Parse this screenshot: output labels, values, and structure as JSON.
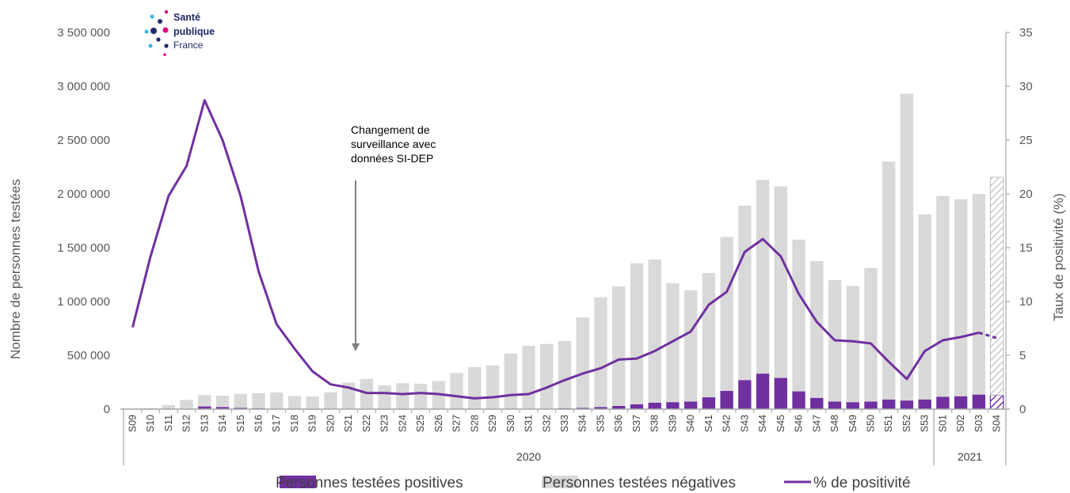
{
  "logo": {
    "line1": "Santé",
    "line2": "publique",
    "line3": "France"
  },
  "annotation": {
    "lines": [
      "Changement de",
      "surveillance avec",
      "données SI-DEP"
    ],
    "at_week": "S21"
  },
  "chart_data": {
    "type": "bar",
    "stacked": true,
    "categories": [
      "S09",
      "S10",
      "S11",
      "S12",
      "S13",
      "S14",
      "S15",
      "S16",
      "S17",
      "S18",
      "S19",
      "S20",
      "S21",
      "S22",
      "S23",
      "S24",
      "S25",
      "S26",
      "S27",
      "S28",
      "S29",
      "S30",
      "S31",
      "S32",
      "S33",
      "S34",
      "S35",
      "S36",
      "S37",
      "S38",
      "S39",
      "S40",
      "S41",
      "S42",
      "S43",
      "S44",
      "S45",
      "S46",
      "S47",
      "S48",
      "S49",
      "S50",
      "S51",
      "S52",
      "S53",
      "S01",
      "S02",
      "S03",
      "S04"
    ],
    "groups": [
      {
        "label": "2020",
        "from": "S09",
        "to": "S53"
      },
      {
        "label": "2021",
        "from": "S01",
        "to": "S04"
      }
    ],
    "hatched_category": "S04",
    "ylabel": "Nombre de personnes testées",
    "y2label": "Taux de positivité (%)",
    "ylim": [
      0,
      3500000
    ],
    "y2lim": [
      0,
      35
    ],
    "yticks": [
      0,
      500000,
      1000000,
      1500000,
      2000000,
      2500000,
      3000000,
      3500000
    ],
    "ytick_labels": [
      "0",
      "500 000",
      "1 000 000",
      "1 500 000",
      "2 000 000",
      "2 500 000",
      "3 000 000",
      "3 500 000"
    ],
    "y2ticks": [
      "0",
      "5",
      "10",
      "15",
      "20",
      "25",
      "30",
      "35"
    ],
    "legend_position": "bottom",
    "series": [
      {
        "name": "Personnes testées positives",
        "type": "bar",
        "color": "#7030a0",
        "values": [
          0,
          0,
          2000,
          5000,
          25000,
          20000,
          12000,
          8000,
          5000,
          3000,
          2000,
          1500,
          1000,
          1000,
          1000,
          1000,
          1000,
          1000,
          1000,
          1000,
          1000,
          2000,
          3000,
          5000,
          8000,
          12000,
          20000,
          30000,
          45000,
          60000,
          65000,
          70000,
          110000,
          170000,
          270000,
          330000,
          290000,
          165000,
          105000,
          70000,
          65000,
          70000,
          90000,
          80000,
          90000,
          115000,
          120000,
          135000,
          130000
        ]
      },
      {
        "name": "Personnes testées négatives",
        "type": "bar",
        "color": "#d9d9d9",
        "values": [
          0,
          10000,
          35000,
          80000,
          105000,
          105000,
          130000,
          140000,
          150000,
          120000,
          115000,
          155000,
          245000,
          280000,
          220000,
          240000,
          235000,
          260000,
          335000,
          390000,
          405000,
          515000,
          585000,
          600000,
          625000,
          840000,
          1020000,
          1110000,
          1310000,
          1330000,
          1105000,
          1035000,
          1155000,
          1430000,
          1620000,
          1800000,
          1780000,
          1410000,
          1270000,
          1130000,
          1080000,
          1240000,
          2210000,
          2850000,
          1720000,
          1865000,
          1830000,
          1865000,
          2025000
        ]
      },
      {
        "name": "% de positivité",
        "type": "line",
        "axis": "right",
        "color": "#7030a0",
        "values": [
          7.6,
          14.2,
          19.8,
          22.6,
          28.7,
          25.0,
          19.8,
          12.8,
          7.9,
          5.6,
          3.5,
          2.3,
          2.0,
          1.5,
          1.5,
          1.4,
          1.5,
          1.4,
          1.2,
          1.0,
          1.1,
          1.3,
          1.4,
          2.0,
          2.7,
          3.3,
          3.8,
          4.6,
          4.7,
          5.4,
          6.3,
          7.2,
          9.7,
          10.9,
          14.6,
          15.8,
          14.2,
          10.7,
          8.1,
          6.4,
          6.3,
          6.1,
          4.4,
          2.8,
          5.4,
          6.4,
          6.7,
          7.1,
          6.6
        ]
      }
    ]
  }
}
